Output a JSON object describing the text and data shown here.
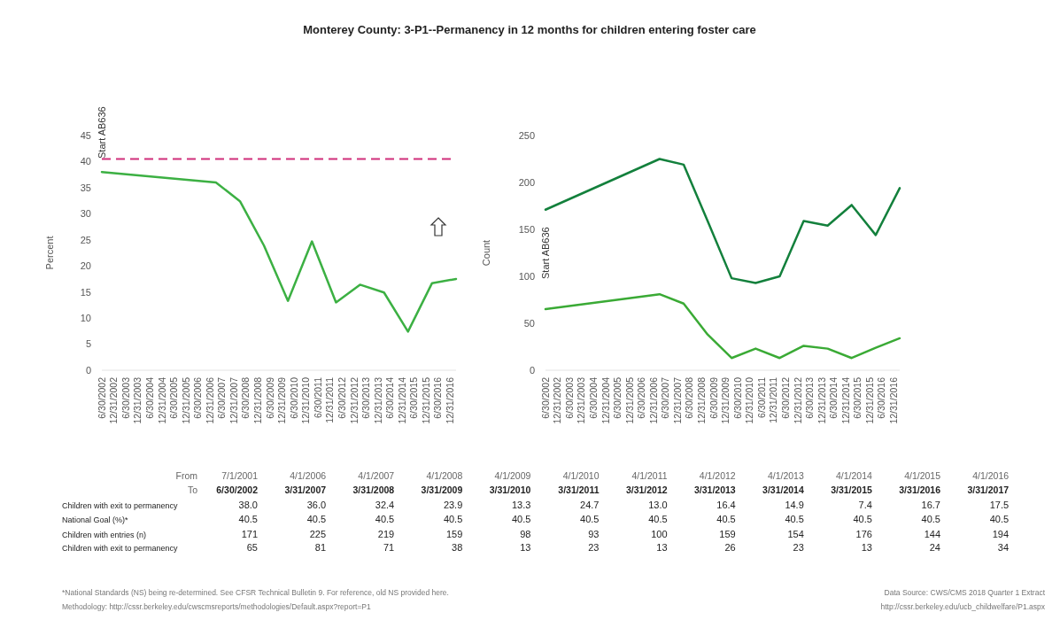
{
  "chart_data": [
    {
      "type": "line",
      "title": "Monterey County: 3-P1--Permanency in 12 months for children entering foster care",
      "ylabel": "Percent",
      "x": [
        "2002-06-30",
        "2007-03-31",
        "2008-03-31",
        "2009-03-31",
        "2010-03-31",
        "2011-03-31",
        "2012-03-31",
        "2013-03-31",
        "2014-03-31",
        "2015-03-31",
        "2016-03-31",
        "2017-03-31"
      ],
      "series": [
        {
          "color": "#3cb043",
          "values": [
            38.0,
            36.0,
            32.4,
            23.9,
            13.3,
            24.7,
            13.0,
            16.4,
            14.9,
            7.4,
            16.7,
            17.5
          ]
        }
      ],
      "ref_lines": [
        {
          "axis": "y",
          "value": 40.5,
          "color": "#d02f7a",
          "line_style": "dashed"
        }
      ],
      "xlim": [
        "2002-06-30",
        "2017-03-31"
      ],
      "xticks": [
        {
          "value": "2002-06-30",
          "label": "6/30/2002"
        },
        {
          "value": "2002-12-31",
          "label": "12/31/2002"
        },
        {
          "value": "2003-06-30",
          "label": "6/30/2003"
        },
        {
          "value": "2003-12-31",
          "label": "12/31/2003"
        },
        {
          "value": "2004-06-30",
          "label": "6/30/2004"
        },
        {
          "value": "2004-12-31",
          "label": "12/31/2004"
        },
        {
          "value": "2005-06-30",
          "label": "6/30/2005"
        },
        {
          "value": "2005-12-31",
          "label": "12/31/2005"
        },
        {
          "value": "2006-06-30",
          "label": "6/30/2006"
        },
        {
          "value": "2006-12-31",
          "label": "12/31/2006"
        },
        {
          "value": "2007-06-30",
          "label": "6/30/2007"
        },
        {
          "value": "2007-12-31",
          "label": "12/31/2007"
        },
        {
          "value": "2008-06-30",
          "label": "6/30/2008"
        },
        {
          "value": "2008-12-31",
          "label": "12/31/2008"
        },
        {
          "value": "2009-06-30",
          "label": "6/30/2009"
        },
        {
          "value": "2009-12-31",
          "label": "12/31/2009"
        },
        {
          "value": "2010-06-30",
          "label": "6/30/2010"
        },
        {
          "value": "2010-12-31",
          "label": "12/31/2010"
        },
        {
          "value": "2011-06-30",
          "label": "6/30/2011"
        },
        {
          "value": "2011-12-31",
          "label": "12/31/2011"
        },
        {
          "value": "2012-06-30",
          "label": "6/30/2012"
        },
        {
          "value": "2012-12-31",
          "label": "12/31/2012"
        },
        {
          "value": "2013-06-30",
          "label": "6/30/2013"
        },
        {
          "value": "2013-12-31",
          "label": "12/31/2013"
        },
        {
          "value": "2014-06-30",
          "label": "6/30/2014"
        },
        {
          "value": "2014-12-31",
          "label": "12/31/2014"
        },
        {
          "value": "2015-06-30",
          "label": "6/30/2015"
        },
        {
          "value": "2015-12-31",
          "label": "12/31/2015"
        },
        {
          "value": "2016-06-30",
          "label": "6/30/2016"
        },
        {
          "value": "2016-12-31",
          "label": "12/31/2016"
        }
      ],
      "ylim": [
        0,
        45
      ],
      "yticks": [
        0,
        5,
        10,
        15,
        20,
        25,
        30,
        35,
        40,
        45
      ],
      "annotations": [
        "Start AB636"
      ]
    },
    {
      "type": "line",
      "ylabel": "Count",
      "x": [
        "2002-06-30",
        "2007-03-31",
        "2008-03-31",
        "2009-03-31",
        "2010-03-31",
        "2011-03-31",
        "2012-03-31",
        "2013-03-31",
        "2014-03-31",
        "2015-03-31",
        "2016-03-31",
        "2017-03-31"
      ],
      "series": [
        {
          "color": "#13803c",
          "values": [
            171,
            225,
            219,
            159,
            98,
            93,
            100,
            159,
            154,
            176,
            144,
            194
          ]
        },
        {
          "color": "#3aaa35",
          "values": [
            65,
            81,
            71,
            38,
            13,
            23,
            13,
            26,
            23,
            13,
            24,
            34
          ]
        }
      ],
      "xlim": [
        "2002-06-30",
        "2017-03-31"
      ],
      "xticks": [
        {
          "value": "2002-06-30",
          "label": "6/30/2002"
        },
        {
          "value": "2002-12-31",
          "label": "12/31/2002"
        },
        {
          "value": "2003-06-30",
          "label": "6/30/2003"
        },
        {
          "value": "2003-12-31",
          "label": "12/31/2003"
        },
        {
          "value": "2004-06-30",
          "label": "6/30/2004"
        },
        {
          "value": "2004-12-31",
          "label": "12/31/2004"
        },
        {
          "value": "2005-06-30",
          "label": "6/30/2005"
        },
        {
          "value": "2005-12-31",
          "label": "12/31/2005"
        },
        {
          "value": "2006-06-30",
          "label": "6/30/2006"
        },
        {
          "value": "2006-12-31",
          "label": "12/31/2006"
        },
        {
          "value": "2007-06-30",
          "label": "6/30/2007"
        },
        {
          "value": "2007-12-31",
          "label": "12/31/2007"
        },
        {
          "value": "2008-06-30",
          "label": "6/30/2008"
        },
        {
          "value": "2008-12-31",
          "label": "12/31/2008"
        },
        {
          "value": "2009-06-30",
          "label": "6/30/2009"
        },
        {
          "value": "2009-12-31",
          "label": "12/31/2009"
        },
        {
          "value": "2010-06-30",
          "label": "6/30/2010"
        },
        {
          "value": "2010-12-31",
          "label": "12/31/2010"
        },
        {
          "value": "2011-06-30",
          "label": "6/30/2011"
        },
        {
          "value": "2011-12-31",
          "label": "12/31/2011"
        },
        {
          "value": "2012-06-30",
          "label": "6/30/2012"
        },
        {
          "value": "2012-12-31",
          "label": "12/31/2012"
        },
        {
          "value": "2013-06-30",
          "label": "6/30/2013"
        },
        {
          "value": "2013-12-31",
          "label": "12/31/2013"
        },
        {
          "value": "2014-06-30",
          "label": "6/30/2014"
        },
        {
          "value": "2014-12-31",
          "label": "12/31/2014"
        },
        {
          "value": "2015-06-30",
          "label": "6/30/2015"
        },
        {
          "value": "2015-12-31",
          "label": "12/31/2015"
        },
        {
          "value": "2016-06-30",
          "label": "6/30/2016"
        },
        {
          "value": "2016-12-31",
          "label": "12/31/2016"
        }
      ],
      "ylim": [
        0,
        250
      ],
      "yticks": [
        0,
        50,
        100,
        150,
        200,
        250
      ],
      "annotations": [
        "Start AB636"
      ]
    },
    {
      "type": "other",
      "data_labels": true,
      "categories": [
        "6/30/2002",
        "3/31/2007",
        "3/31/2008",
        "3/31/2009",
        "3/31/2010",
        "3/31/2011",
        "3/31/2012",
        "3/31/2013",
        "3/31/2014",
        "3/31/2015",
        "3/31/2016",
        "3/31/2017"
      ],
      "series": [
        {
          "name": "Children with exit to permanency",
          "values": [
            38.0,
            36.0,
            32.4,
            23.9,
            13.3,
            24.7,
            13.0,
            16.4,
            14.9,
            7.4,
            16.7,
            17.5
          ],
          "value_labels": [
            "38.0",
            "36.0",
            "32.4",
            "23.9",
            "13.3",
            "24.7",
            "13.0",
            "16.4",
            "14.9",
            "7.4",
            "16.7",
            "17.5"
          ]
        },
        {
          "name": "National Goal (%)*",
          "values": [
            40.5,
            40.5,
            40.5,
            40.5,
            40.5,
            40.5,
            40.5,
            40.5,
            40.5,
            40.5,
            40.5,
            40.5
          ]
        },
        {
          "name": "Children with entries (n)",
          "values": [
            171,
            225,
            219,
            159,
            98,
            93,
            100,
            159,
            154,
            176,
            144,
            194
          ]
        },
        {
          "name": "Children with exit to permanency",
          "values": [
            65,
            81,
            71,
            38,
            13,
            23,
            13,
            26,
            23,
            13,
            24,
            34
          ]
        }
      ],
      "annotations": [
        "From",
        "To",
        "7/1/2001",
        "4/1/2006",
        "4/1/2007",
        "4/1/2008",
        "4/1/2009",
        "4/1/2010",
        "4/1/2011",
        "4/1/2012",
        "4/1/2013",
        "4/1/2014",
        "4/1/2015",
        "4/1/2016",
        "*National Standards (NS) being re-determined. See CFSR Technical Bulletin 9. For reference, old NS provided here.",
        "Methodology: http://cssr.berkeley.edu/cwscmsreports/methodologies/Default.aspx?report=P1",
        "Data Source: CWS/CMS 2018 Quarter 1 Extract",
        "http://cssr.berkeley.edu/ucb_childwelfare/P1.aspx"
      ]
    }
  ]
}
